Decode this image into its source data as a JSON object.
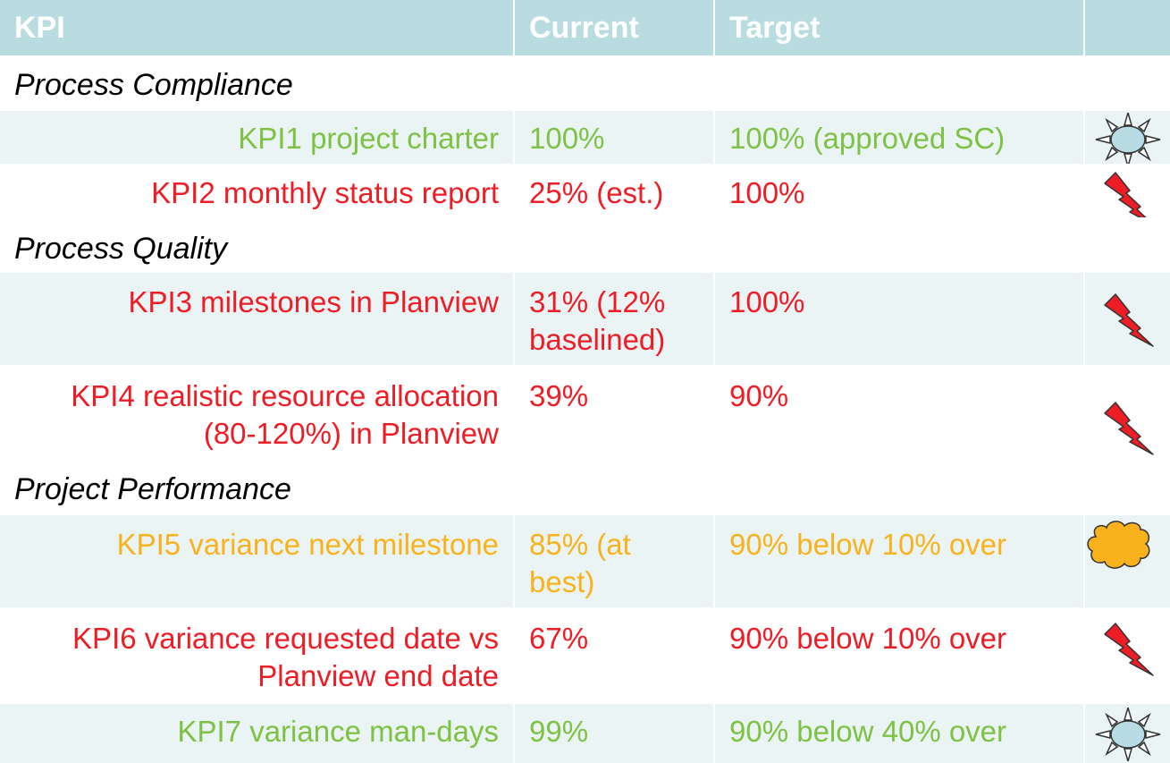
{
  "header": {
    "kpi": "KPI",
    "current": "Current",
    "target": "Target"
  },
  "sections": {
    "compliance": "Process Compliance",
    "quality": "Process Quality",
    "performance": "Project Performance"
  },
  "rows": [
    {
      "name": "KPI1 project charter",
      "current": "100%",
      "target": "100% (approved SC)",
      "status": "green",
      "icon": "sun-icon"
    },
    {
      "name": "KPI2 monthly status report",
      "current": "25% (est.)",
      "target": "100%",
      "status": "red",
      "icon": "lightning-icon"
    },
    {
      "name": "KPI3 milestones in Planview",
      "current_l1": "31% (12%",
      "current_l2": "baselined)",
      "target": "100%",
      "status": "red",
      "icon": "lightning-icon"
    },
    {
      "name_l1": "KPI4 realistic resource allocation",
      "name_l2": "(80-120%) in Planview",
      "current": "39%",
      "target": "90%",
      "status": "red",
      "icon": "lightning-icon"
    },
    {
      "name": "KPI5 variance next milestone",
      "current_l1": "85% (at",
      "current_l2": "best)",
      "target": "90% below 10% over",
      "status": "amber",
      "icon": "cloud-icon"
    },
    {
      "name_l1": "KPI6 variance requested date vs",
      "name_l2": "Planview end date",
      "current": "67%",
      "target": "90% below 10% over",
      "status": "red",
      "icon": "lightning-icon"
    },
    {
      "name": "KPI7 variance man-days",
      "current": "99%",
      "target": "90% below 40% over",
      "status": "green",
      "icon": "sun-icon"
    }
  ],
  "colors": {
    "header_bg": "#b8dce0",
    "stripe": "#eaf4f5",
    "green": "#7dc242",
    "red": "#ee1c24",
    "amber": "#f9b21c"
  }
}
